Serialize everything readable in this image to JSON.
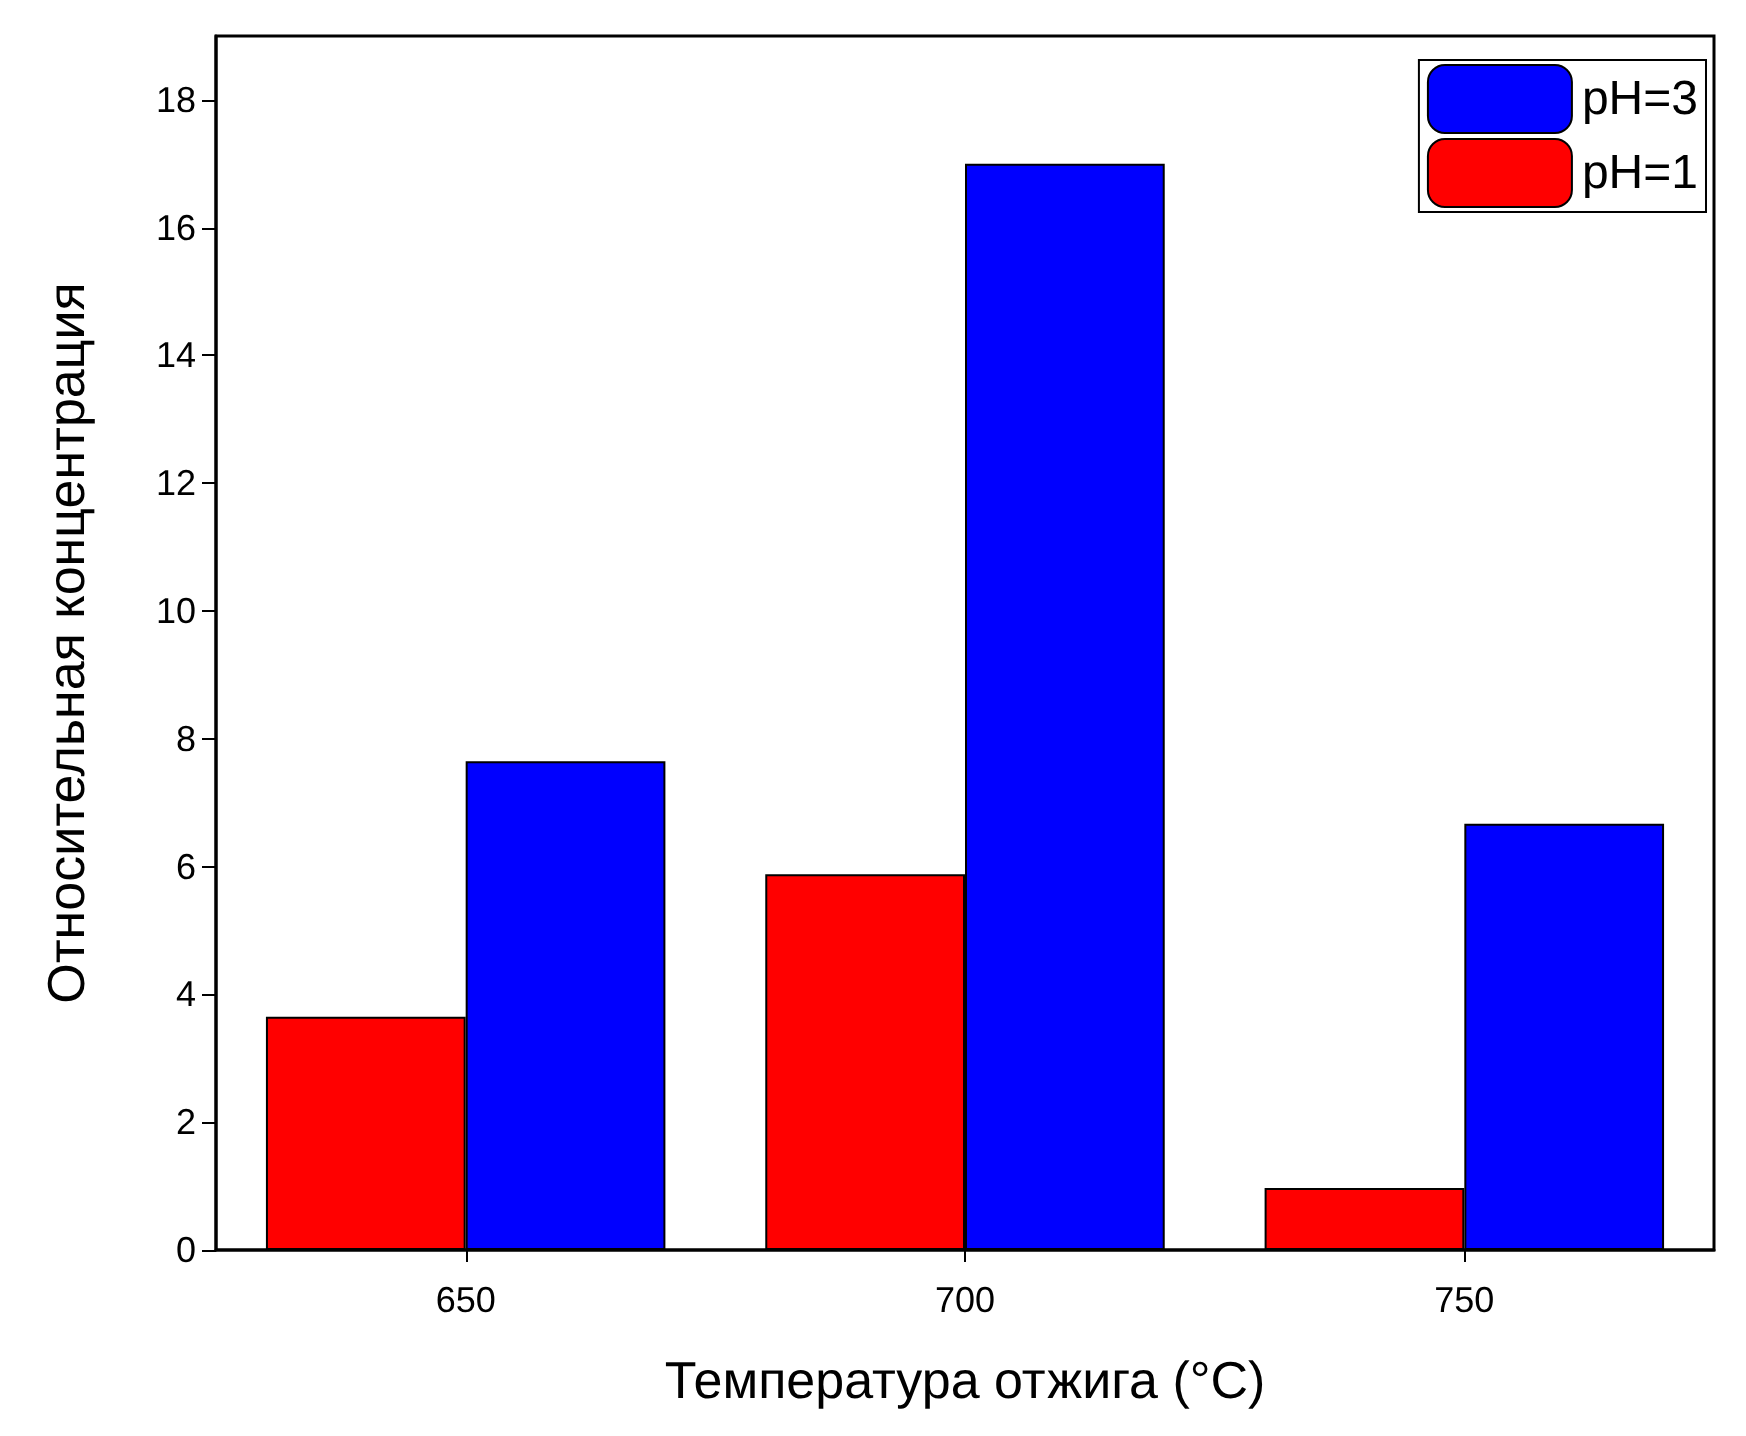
{
  "chart_data": {
    "type": "bar",
    "xlabel": "Температура отжига (°C)",
    "ylabel": "Относительная концентрация",
    "categories": [
      "650",
      "700",
      "750"
    ],
    "series": [
      {
        "name": "pH=1",
        "color": "#ff0000",
        "values": [
          3.65,
          5.88,
          0.97
        ]
      },
      {
        "name": "pH=3",
        "color": "#0000ff",
        "values": [
          7.65,
          17.0,
          6.67
        ]
      }
    ],
    "ylim": [
      0,
      19
    ],
    "yticks": [
      0,
      2,
      4,
      6,
      8,
      10,
      12,
      14,
      16,
      18
    ],
    "grid": false,
    "legend": "top right"
  }
}
